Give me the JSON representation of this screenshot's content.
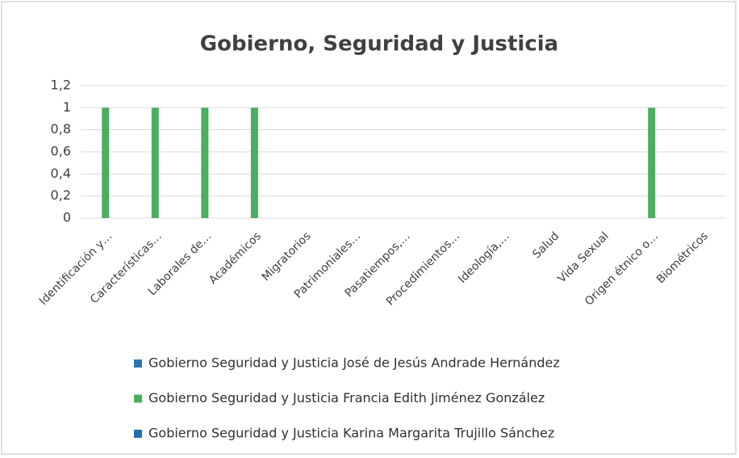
{
  "chart_data": {
    "type": "bar",
    "title": "Gobierno, Seguridad y Justicia",
    "categories": [
      "Identificación y…",
      "Características…",
      "Laborales de…",
      "Académicos",
      "Migratorios",
      "Patrimoniales…",
      "Pasatiempos,…",
      "Procedimientos…",
      "Ideología,…",
      "Salud",
      "Vida Sexual",
      "Origen étnico o…",
      "Biométricos"
    ],
    "series": [
      {
        "name": "Gobierno Seguridad y Justicia José de Jesús Andrade Hernández",
        "color": "#2e75b6",
        "values": [
          0,
          0,
          0,
          0,
          0,
          0,
          0,
          0,
          0,
          0,
          0,
          0,
          0
        ]
      },
      {
        "name": "Gobierno Seguridad y Justicia Francia Edith Jiménez González",
        "color": "#4caf5f",
        "values": [
          1,
          1,
          1,
          1,
          0,
          0,
          0,
          0,
          0,
          0,
          0,
          1,
          0
        ]
      },
      {
        "name": "Gobierno Seguridad y Justicia Karina Margarita Trujillo Sánchez",
        "color": "#1f6eb0",
        "values": [
          0,
          0,
          0,
          0,
          0,
          0,
          0,
          0,
          0,
          0,
          0,
          0,
          0
        ]
      }
    ],
    "ylim": [
      0,
      1.2
    ],
    "yticks": [
      0,
      {
        "value": 0.2,
        "label": "0,2"
      },
      {
        "value": 0.4,
        "label": "0,4"
      },
      {
        "value": 0.6,
        "label": "0,6"
      },
      {
        "value": 0.8,
        "label": "0,8"
      },
      1,
      {
        "value": 1.2,
        "label": "1,2"
      }
    ],
    "grid": true,
    "legend": "bottom"
  }
}
